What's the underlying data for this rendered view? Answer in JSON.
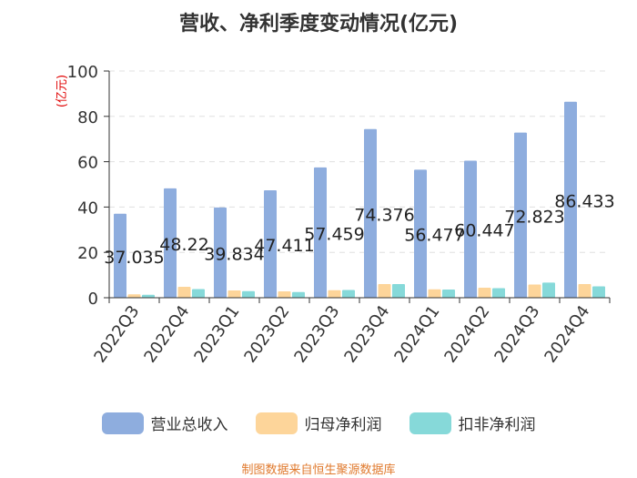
{
  "title": "营收、净利季度变动情况(亿元)",
  "source": "制图数据来自恒生聚源数据库",
  "colors": {
    "revenue": "#8eadde",
    "net_profit": "#fdd59a",
    "deducted_net_profit": "#86d9d9",
    "axis": "#333333",
    "grid": "#e0e0e0",
    "unit_label": "#e00000"
  },
  "chart_data": {
    "type": "bar",
    "title": "营收、净利季度变动情况(亿元)",
    "ylabel": "(亿元)",
    "ylim": [
      0,
      100
    ],
    "yticks": [
      0,
      20,
      40,
      60,
      80,
      100
    ],
    "grid": true,
    "legend_position": "bottom",
    "categories": [
      "2022Q3",
      "2022Q4",
      "2023Q1",
      "2023Q2",
      "2023Q3",
      "2023Q4",
      "2024Q1",
      "2024Q2",
      "2024Q3",
      "2024Q4"
    ],
    "series": [
      {
        "name": "营业总收入",
        "values": [
          37.035,
          48.22,
          39.834,
          47.411,
          57.459,
          74.376,
          56.477,
          60.447,
          72.823,
          86.433
        ],
        "data_labels": [
          "37.035",
          "48.22",
          "39.834",
          "47.411",
          "57.459",
          "74.376",
          "56.477",
          "60.447",
          "72.823",
          "86.433"
        ]
      },
      {
        "name": "归母净利润",
        "values": [
          1.5,
          4.8,
          3.2,
          2.8,
          3.3,
          6.0,
          3.7,
          4.4,
          5.8,
          6.0
        ]
      },
      {
        "name": "扣非净利润",
        "values": [
          1.3,
          3.8,
          2.9,
          2.5,
          3.4,
          6.0,
          3.6,
          4.2,
          6.7,
          5.0
        ]
      }
    ]
  }
}
